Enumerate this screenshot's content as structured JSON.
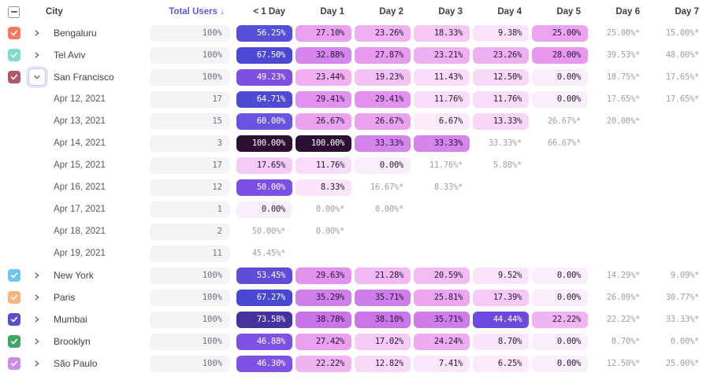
{
  "header": {
    "select_all_state": "indeterminate",
    "columns": [
      "City",
      "Total Users ↓",
      "< 1 Day",
      "Day 1",
      "Day 2",
      "Day 3",
      "Day 4",
      "Day 5",
      "Day 6",
      "Day 7"
    ],
    "sorted_column": "Total Users ↓"
  },
  "palette": {
    "accent": "#5b5bd9",
    "muted_text": "#9ba1a6",
    "row_text": "#3d4043",
    "pill_light_text": "#241a33",
    "pill_dark_text": "#ffffff",
    "total_pill_bg": "#f4f4f6",
    "total_pill_text": "#6d717e"
  },
  "rows": [
    {
      "kind": "city",
      "label": "Bengaluru",
      "checkbox_color": "#f9795b",
      "checked": true,
      "expanded": false,
      "total": "100%",
      "cells": [
        {
          "v": "56.25%",
          "bg": "#564fd8",
          "fg": "light"
        },
        {
          "v": "27.10%",
          "bg": "#eaa0ef"
        },
        {
          "v": "23.26%",
          "bg": "#efb0f1"
        },
        {
          "v": "18.33%",
          "bg": "#f4c5f5"
        },
        {
          "v": "9.38%",
          "bg": "#fae2fa"
        },
        {
          "v": "25.00%",
          "bg": "#eca3f0"
        },
        {
          "v": "25.00%*",
          "plain": true
        },
        {
          "v": "15.00%*",
          "plain": true
        }
      ]
    },
    {
      "kind": "city",
      "label": "Tel Aviv",
      "checkbox_color": "#7eddca",
      "checked": true,
      "expanded": false,
      "total": "100%",
      "cells": [
        {
          "v": "67.50%",
          "bg": "#4a48d4",
          "fg": "light"
        },
        {
          "v": "32.88%",
          "bg": "#d685ec"
        },
        {
          "v": "27.87%",
          "bg": "#e89aef"
        },
        {
          "v": "23.21%",
          "bg": "#efb0f1"
        },
        {
          "v": "23.26%",
          "bg": "#efb0f1"
        },
        {
          "v": "28.00%",
          "bg": "#e798ee"
        },
        {
          "v": "39.53%*",
          "plain": true
        },
        {
          "v": "48.00%*",
          "plain": true
        }
      ]
    },
    {
      "kind": "city",
      "label": "San Francisco",
      "checkbox_color": "#b25668",
      "checked": true,
      "expanded": true,
      "total": "100%",
      "cells": [
        {
          "v": "49.23%",
          "bg": "#7e50e2",
          "fg": "light"
        },
        {
          "v": "23.44%",
          "bg": "#efaff1"
        },
        {
          "v": "19.23%",
          "bg": "#f3c2f4"
        },
        {
          "v": "11.43%",
          "bg": "#f9ddf9"
        },
        {
          "v": "12.50%",
          "bg": "#f8daf8"
        },
        {
          "v": "0.00%",
          "bg": "#fbeefc"
        },
        {
          "v": "18.75%*",
          "plain": true
        },
        {
          "v": "17.65%*",
          "plain": true
        }
      ]
    },
    {
      "kind": "date",
      "label": "Apr 12, 2021",
      "total": "17",
      "cells": [
        {
          "v": "64.71%",
          "bg": "#4f4ad6",
          "fg": "light"
        },
        {
          "v": "29.41%",
          "bg": "#e292ee"
        },
        {
          "v": "29.41%",
          "bg": "#e292ee"
        },
        {
          "v": "11.76%",
          "bg": "#f8dcf9"
        },
        {
          "v": "11.76%",
          "bg": "#f8dcf9"
        },
        {
          "v": "0.00%",
          "bg": "#fbeefc"
        },
        {
          "v": "17.65%*",
          "plain": true
        },
        {
          "v": "17.65%*",
          "plain": true
        }
      ]
    },
    {
      "kind": "date",
      "label": "Apr 13, 2021",
      "total": "15",
      "cells": [
        {
          "v": "60.00%",
          "bg": "#6b52e2",
          "fg": "light"
        },
        {
          "v": "26.67%",
          "bg": "#eba2ef"
        },
        {
          "v": "26.67%",
          "bg": "#eba2ef"
        },
        {
          "v": "6.67%",
          "bg": "#fce9fb"
        },
        {
          "v": "13.33%",
          "bg": "#f7d6f8"
        },
        {
          "v": "26.67%*",
          "plain": true
        },
        {
          "v": "20.00%*",
          "plain": true
        },
        null
      ]
    },
    {
      "kind": "date",
      "label": "Apr 14, 2021",
      "total": "3",
      "cells": [
        {
          "v": "100.00%",
          "bg": "#2d1033",
          "fg": "light"
        },
        {
          "v": "100.00%",
          "bg": "#2d1033",
          "fg": "light"
        },
        {
          "v": "33.33%",
          "bg": "#d584ec"
        },
        {
          "v": "33.33%",
          "bg": "#d584ec"
        },
        {
          "v": "33.33%*",
          "plain": true
        },
        {
          "v": "66.67%*",
          "plain": true
        },
        null,
        null
      ]
    },
    {
      "kind": "date",
      "label": "Apr 15, 2021",
      "total": "17",
      "cells": [
        {
          "v": "17.65%",
          "bg": "#f5caf6"
        },
        {
          "v": "11.76%",
          "bg": "#f8dcf9"
        },
        {
          "v": "0.00%",
          "bg": "#fbeefc"
        },
        {
          "v": "11.76%*",
          "plain": true
        },
        {
          "v": "5.88%*",
          "plain": true
        },
        null,
        null,
        null
      ]
    },
    {
      "kind": "date",
      "label": "Apr 16, 2021",
      "total": "12",
      "cells": [
        {
          "v": "50.00%",
          "bg": "#7b4fe3",
          "fg": "light"
        },
        {
          "v": "8.33%",
          "bg": "#fae4fa"
        },
        {
          "v": "16.67%*",
          "plain": true
        },
        {
          "v": "8.33%*",
          "plain": true
        },
        null,
        null,
        null,
        null
      ]
    },
    {
      "kind": "date",
      "label": "Apr 17, 2021",
      "total": "1",
      "cells": [
        {
          "v": "0.00%",
          "bg": "#fbeefc"
        },
        {
          "v": "0.00%*",
          "plain": true
        },
        {
          "v": "0.00%*",
          "plain": true
        },
        null,
        null,
        null,
        null,
        null
      ]
    },
    {
      "kind": "date",
      "label": "Apr 18, 2021",
      "total": "2",
      "cells": [
        {
          "v": "50.00%*",
          "plain": true
        },
        {
          "v": "0.00%*",
          "plain": true
        },
        null,
        null,
        null,
        null,
        null,
        null
      ]
    },
    {
      "kind": "date",
      "label": "Apr 19, 2021",
      "total": "11",
      "cells": [
        {
          "v": "45.45%*",
          "plain": true
        },
        null,
        null,
        null,
        null,
        null,
        null,
        null
      ]
    },
    {
      "kind": "city",
      "label": "New York",
      "checkbox_color": "#6fc2f2",
      "checked": true,
      "expanded": false,
      "total": "100%",
      "cells": [
        {
          "v": "53.45%",
          "bg": "#5f4cd9",
          "fg": "light"
        },
        {
          "v": "29.63%",
          "bg": "#e292ee"
        },
        {
          "v": "21.28%",
          "bg": "#f1b8f3"
        },
        {
          "v": "20.59%",
          "bg": "#f2bcf3"
        },
        {
          "v": "9.52%",
          "bg": "#fae2fa"
        },
        {
          "v": "0.00%",
          "bg": "#fbeefc"
        },
        {
          "v": "14.29%*",
          "plain": true
        },
        {
          "v": "9.09%*",
          "plain": true
        }
      ]
    },
    {
      "kind": "city",
      "label": "Paris",
      "checkbox_color": "#f9b47c",
      "checked": true,
      "expanded": false,
      "total": "100%",
      "cells": [
        {
          "v": "67.27%",
          "bg": "#4a47d2",
          "fg": "light"
        },
        {
          "v": "35.29%",
          "bg": "#d07eeb"
        },
        {
          "v": "35.71%",
          "bg": "#cf7dea"
        },
        {
          "v": "25.81%",
          "bg": "#eca6f0"
        },
        {
          "v": "17.39%",
          "bg": "#f5caf6"
        },
        {
          "v": "0.00%",
          "bg": "#fbeefc"
        },
        {
          "v": "26.09%*",
          "plain": true
        },
        {
          "v": "30.77%*",
          "plain": true
        }
      ]
    },
    {
      "kind": "city",
      "label": "Mumbai",
      "checkbox_color": "#5a50c6",
      "checked": true,
      "expanded": false,
      "total": "100%",
      "cells": [
        {
          "v": "73.58%",
          "bg": "#44339f",
          "fg": "light"
        },
        {
          "v": "38.78%",
          "bg": "#c973e9"
        },
        {
          "v": "38.10%",
          "bg": "#ca75ea"
        },
        {
          "v": "35.71%",
          "bg": "#cf7dea"
        },
        {
          "v": "44.44%",
          "bg": "#6d49e0",
          "fg": "light"
        },
        {
          "v": "22.22%",
          "bg": "#f0b4f2"
        },
        {
          "v": "22.22%*",
          "plain": true
        },
        {
          "v": "33.33%*",
          "plain": true
        }
      ]
    },
    {
      "kind": "city",
      "label": "Brooklyn",
      "checkbox_color": "#3ea765",
      "checked": true,
      "expanded": false,
      "total": "100%",
      "cells": [
        {
          "v": "46.88%",
          "bg": "#7c51e3",
          "fg": "light"
        },
        {
          "v": "27.42%",
          "bg": "#ea9fef"
        },
        {
          "v": "17.02%",
          "bg": "#f5caf6"
        },
        {
          "v": "24.24%",
          "bg": "#eeacf0"
        },
        {
          "v": "8.70%",
          "bg": "#fae4fa"
        },
        {
          "v": "0.00%",
          "bg": "#fbeefc"
        },
        {
          "v": "8.70%*",
          "plain": true
        },
        {
          "v": "0.00%*",
          "plain": true
        }
      ]
    },
    {
      "kind": "city",
      "label": "São Paulo",
      "checkbox_color": "#c98ce3",
      "checked": true,
      "expanded": false,
      "total": "100%",
      "cells": [
        {
          "v": "46.30%",
          "bg": "#7e52e4",
          "fg": "light"
        },
        {
          "v": "22.22%",
          "bg": "#f0b4f2"
        },
        {
          "v": "12.82%",
          "bg": "#f8daf8"
        },
        {
          "v": "7.41%",
          "bg": "#fbe7fb"
        },
        {
          "v": "6.25%",
          "bg": "#fce9fb"
        },
        {
          "v": "0.00%",
          "bg": "#fbeefc"
        },
        {
          "v": "12.50%*",
          "plain": true
        },
        {
          "v": "25.00%*",
          "plain": true
        }
      ]
    }
  ]
}
